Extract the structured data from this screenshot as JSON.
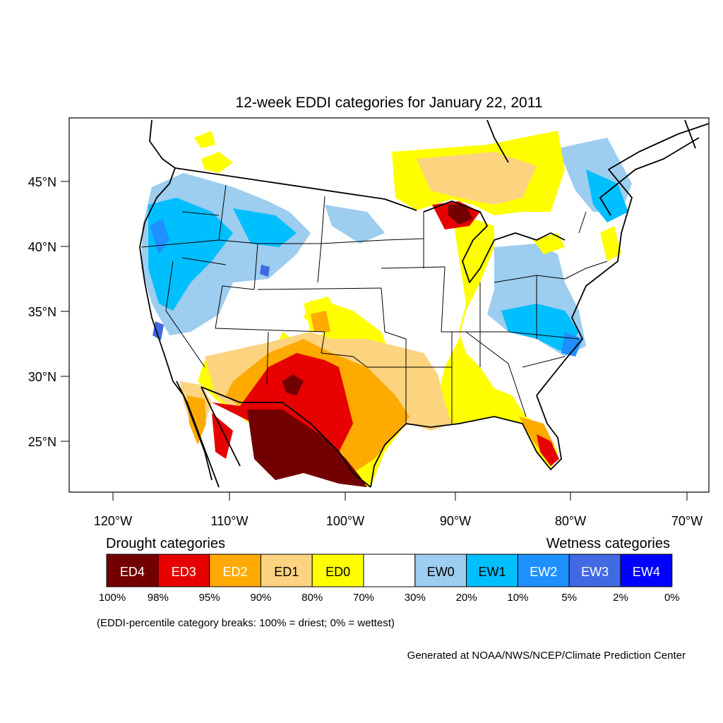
{
  "title": "12-week EDDI categories for January 22, 2011",
  "y_ticks": [
    "45°N",
    "40°N",
    "35°N",
    "30°N",
    "25°N"
  ],
  "x_ticks": [
    "120°W",
    "110°W",
    "100°W",
    "90°W",
    "80°W",
    "70°W"
  ],
  "drought_heading": "Drought categories",
  "wetness_heading": "Wetness categories",
  "legend": [
    {
      "label": "ED4",
      "color": "#730000",
      "text_color": "#ffffff"
    },
    {
      "label": "ED3",
      "color": "#e60000",
      "text_color": "#ffffff"
    },
    {
      "label": "ED2",
      "color": "#ffaa00",
      "text_color": "#ffffff"
    },
    {
      "label": "ED1",
      "color": "#fcd37f",
      "text_color": "#000000"
    },
    {
      "label": "ED0",
      "color": "#ffff00",
      "text_color": "#000000"
    },
    {
      "label": "",
      "color": "#ffffff",
      "text_color": "#000000"
    },
    {
      "label": "EW0",
      "color": "#9dcdef",
      "text_color": "#000000"
    },
    {
      "label": "EW1",
      "color": "#00bfff",
      "text_color": "#000000"
    },
    {
      "label": "EW2",
      "color": "#1e90ff",
      "text_color": "#ffffff"
    },
    {
      "label": "EW3",
      "color": "#4169e1",
      "text_color": "#ffffff"
    },
    {
      "label": "EW4",
      "color": "#0000ff",
      "text_color": "#ffffff"
    }
  ],
  "percent_breaks": [
    "100%",
    "98%",
    "95%",
    "90%",
    "80%",
    "70%",
    "30%",
    "20%",
    "10%",
    "5%",
    "2%",
    "0%"
  ],
  "note": "(EDDI-percentile category breaks: 100% = driest; 0% = wettest)",
  "credit": "Generated at NOAA/NWS/NCEP/Climate Prediction Center"
}
